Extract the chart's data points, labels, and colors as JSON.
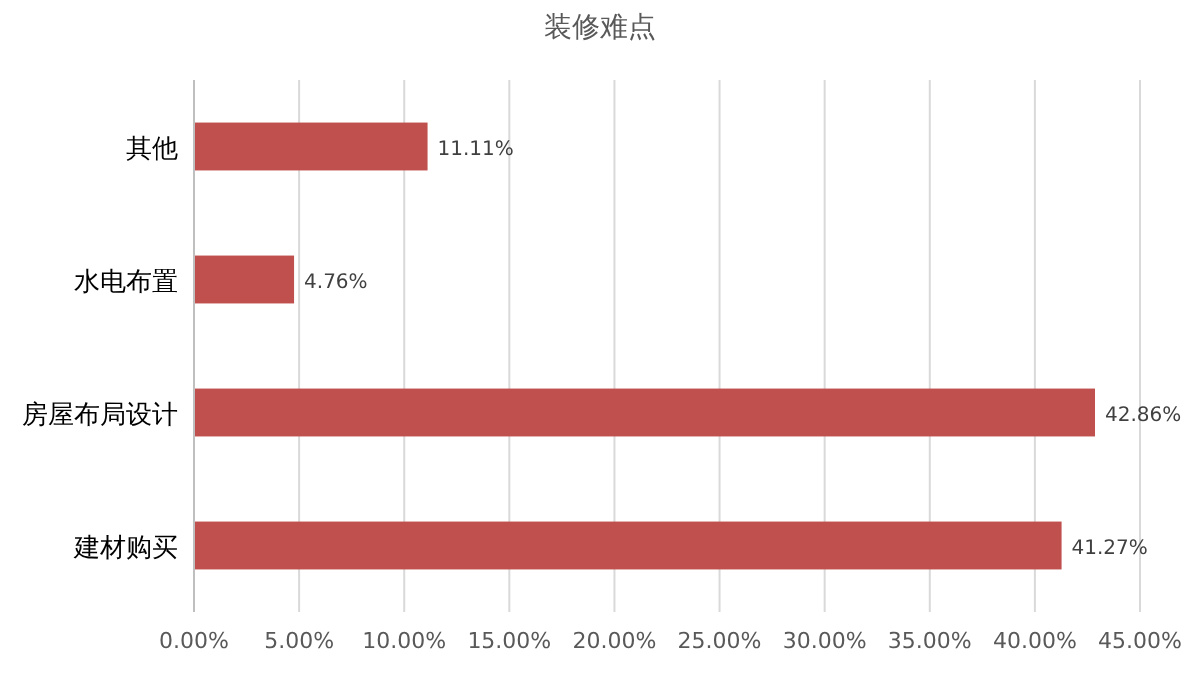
{
  "chart_data": {
    "type": "bar",
    "orientation": "horizontal",
    "title": "装修难点",
    "categories": [
      "其他",
      "水电布置",
      "房屋布局设计",
      "建材购买"
    ],
    "values": [
      11.11,
      4.76,
      42.86,
      41.27
    ],
    "color": "#c0504d",
    "value_labels": [
      "11.11%",
      "4.76%",
      "42.86%",
      "41.27%"
    ],
    "xlim": [
      0,
      45
    ],
    "xticks": [
      {
        "value": 0,
        "label": "0.00%"
      },
      {
        "value": 5,
        "label": "5.00%"
      },
      {
        "value": 10,
        "label": "10.00%"
      },
      {
        "value": 15,
        "label": "15.00%"
      },
      {
        "value": 20,
        "label": "20.00%"
      },
      {
        "value": 25,
        "label": "25.00%"
      },
      {
        "value": 30,
        "label": "30.00%"
      },
      {
        "value": 35,
        "label": "35.00%"
      },
      {
        "value": 40,
        "label": "40.00%"
      },
      {
        "value": 45,
        "label": "45.00%"
      }
    ],
    "grid": "x"
  }
}
